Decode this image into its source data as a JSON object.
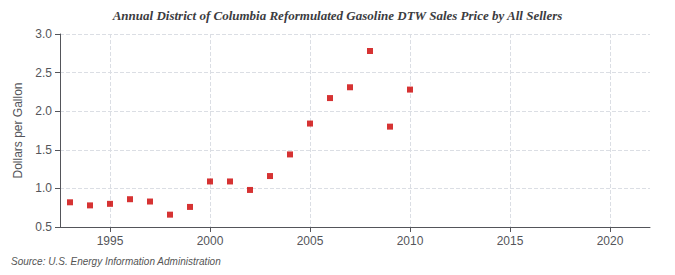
{
  "chart_data": {
    "type": "scatter",
    "title": "Annual District of Columbia Reformulated Gasoline DTW Sales Price by All Sellers",
    "ylabel": "Dollars per Gallon",
    "source": "Source: U.S. Energy Information Administration",
    "x": [
      1993,
      1994,
      1995,
      1996,
      1997,
      1998,
      1999,
      2000,
      2001,
      2002,
      2003,
      2004,
      2005,
      2006,
      2007,
      2008,
      2009,
      2010
    ],
    "values": [
      0.82,
      0.78,
      0.8,
      0.86,
      0.83,
      0.66,
      0.76,
      1.09,
      1.09,
      0.98,
      1.16,
      1.44,
      1.84,
      2.17,
      2.31,
      2.78,
      1.8,
      2.28
    ],
    "color": "#cc0000",
    "marker": "square",
    "xlim": [
      1992.5,
      2022
    ],
    "xticks": [
      1995,
      2000,
      2005,
      2010,
      2015,
      2020
    ],
    "ylim": [
      0.5,
      3.0
    ],
    "yticks": [
      {
        "value": 0.5,
        "label": "0.5"
      },
      {
        "value": 1.0,
        "label": "1.0"
      },
      {
        "value": 1.5,
        "label": "1.5"
      },
      {
        "value": 2.0,
        "label": "2.0"
      },
      {
        "value": 2.5,
        "label": "2.5"
      },
      {
        "value": 3.0,
        "label": "3.0"
      }
    ],
    "grid": true
  }
}
